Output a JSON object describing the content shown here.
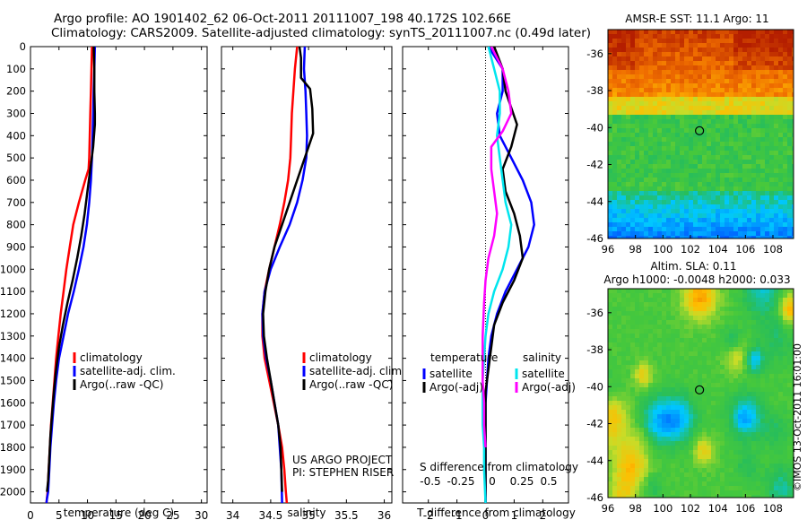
{
  "header": {
    "line1": "Argo profile: AO 1901402_62 06-Oct-2011 20111007_198 40.172S 102.66E",
    "line2": "Climatology: CARS2009. Satellite-adjusted climatology: synTS_20111007.nc (0.49d later)"
  },
  "colors": {
    "climatology": "#ff0000",
    "satellite": "#0000ff",
    "argo": "#000000",
    "sat_s": "#00e5ee",
    "argo_s": "#ff00ff"
  },
  "chart_data": [
    {
      "type": "line",
      "xlabel": "temperature (deg C)",
      "xlim": [
        0,
        31
      ],
      "ylim": [
        0,
        2050
      ],
      "y_reversed": true,
      "xticks": [
        0,
        5,
        10,
        15,
        20,
        25,
        30
      ],
      "yticks": [
        0,
        100,
        200,
        300,
        400,
        500,
        600,
        700,
        800,
        900,
        1000,
        1100,
        1200,
        1300,
        1400,
        1500,
        1600,
        1700,
        1800,
        1900,
        2000
      ],
      "legend": [
        "climatology",
        "satellite-adj. clim.",
        "Argo(..raw -QC)"
      ],
      "series": [
        {
          "name": "climatology",
          "color": "#ff0000",
          "x": [
            10.8,
            10.7,
            10.6,
            10.5,
            10.4,
            10.3,
            10.2,
            9.6,
            8.5,
            7.5,
            6.9,
            6.3,
            5.8,
            5.3,
            4.9,
            4.5,
            4.2,
            3.9,
            3.6,
            3.4,
            3.2,
            3.0,
            2.8,
            2.7,
            2.6,
            2.5
          ],
          "y": [
            0,
            100,
            200,
            300,
            400,
            500,
            550,
            600,
            700,
            800,
            900,
            1000,
            1100,
            1200,
            1300,
            1400,
            1500,
            1600,
            1700,
            1800,
            1900,
            2000,
            2050,
            2060,
            2070,
            2080
          ]
        },
        {
          "name": "satellite-adj. clim.",
          "color": "#0000ff",
          "x": [
            11.3,
            11.2,
            11.1,
            11.0,
            10.9,
            10.8,
            10.6,
            10.3,
            9.9,
            9.3,
            8.5,
            7.6,
            6.6,
            5.8,
            5.0,
            4.5,
            4.1,
            3.8,
            3.5,
            3.3,
            3.1,
            2.9,
            2.8
          ],
          "y": [
            0,
            100,
            200,
            300,
            400,
            500,
            600,
            700,
            800,
            900,
            1000,
            1100,
            1200,
            1300,
            1400,
            1500,
            1600,
            1700,
            1800,
            1900,
            2000,
            2030,
            2050
          ]
        },
        {
          "name": "Argo(..raw -QC)",
          "color": "#000000",
          "x": [
            11.1,
            11.2,
            11.2,
            11.3,
            11.3,
            11.0,
            10.5,
            10.0,
            9.5,
            8.9,
            8.2,
            7.4,
            6.5,
            5.7,
            5.0,
            4.5,
            4.1,
            3.8,
            3.5,
            3.3,
            3.1,
            2.9
          ],
          "y": [
            0,
            100,
            200,
            300,
            350,
            450,
            550,
            650,
            750,
            850,
            950,
            1050,
            1150,
            1250,
            1350,
            1450,
            1550,
            1650,
            1750,
            1850,
            1950,
            2000
          ]
        }
      ]
    },
    {
      "type": "line",
      "xlabel": "salinity",
      "xlim": [
        33.85,
        36.1
      ],
      "ylim": [
        0,
        2050
      ],
      "y_reversed": true,
      "xticks": [
        34,
        34.5,
        35,
        35.5,
        36
      ],
      "legend": [
        "climatology",
        "satellite-adj. clim.",
        "Argo(..raw -QC)"
      ],
      "annotation": [
        "US ARGO PROJECT",
        "PI: STEPHEN RISER"
      ],
      "series": [
        {
          "name": "climatology",
          "color": "#ff0000",
          "x": [
            34.85,
            34.82,
            34.8,
            34.78,
            34.77,
            34.76,
            34.73,
            34.68,
            34.62,
            34.55,
            34.48,
            34.42,
            34.39,
            34.39,
            34.42,
            34.48,
            34.54,
            34.6,
            34.65,
            34.68,
            34.7,
            34.72
          ],
          "y": [
            0,
            100,
            200,
            300,
            400,
            500,
            600,
            700,
            800,
            900,
            1000,
            1100,
            1200,
            1300,
            1400,
            1500,
            1600,
            1700,
            1800,
            1900,
            2000,
            2080
          ]
        },
        {
          "name": "satellite-adj. clim.",
          "color": "#0000ff",
          "x": [
            34.95,
            34.94,
            34.96,
            34.97,
            34.98,
            34.97,
            34.92,
            34.85,
            34.75,
            34.62,
            34.5,
            34.42,
            34.39,
            34.4,
            34.44,
            34.5,
            34.55,
            34.6,
            34.62,
            34.64,
            34.65
          ],
          "y": [
            0,
            100,
            200,
            300,
            400,
            500,
            600,
            700,
            800,
            900,
            1000,
            1100,
            1200,
            1300,
            1400,
            1500,
            1600,
            1700,
            1800,
            1900,
            2050
          ]
        },
        {
          "name": "Argo(..raw -QC)",
          "color": "#000000",
          "x": [
            34.88,
            34.9,
            34.9,
            35.02,
            35.05,
            35.06,
            34.95,
            34.85,
            34.75,
            34.65,
            34.55,
            34.48,
            34.43,
            34.4,
            34.41,
            34.45,
            34.5,
            34.55,
            34.6,
            34.63,
            34.65
          ],
          "y": [
            0,
            50,
            140,
            190,
            280,
            390,
            500,
            600,
            700,
            800,
            900,
            1000,
            1100,
            1200,
            1300,
            1400,
            1500,
            1600,
            1700,
            1800,
            2000
          ]
        }
      ]
    },
    {
      "type": "line",
      "title": "S difference from climatology",
      "xlabel": "T difference from climatology",
      "xlim": [
        -2.9,
        2.9
      ],
      "ylim": [
        0,
        2050
      ],
      "y_reversed": true,
      "xticks": [
        -2,
        -1,
        0,
        1,
        2
      ],
      "top_ticks": [
        "-0.5",
        "-0.25",
        "0",
        "0.25",
        "0.5"
      ],
      "legend_headers": [
        "temperature",
        "salinity"
      ],
      "legend": [
        "satellite",
        "Argo(-adj)",
        "satellite",
        "Argo(-adj)"
      ],
      "series": [
        {
          "name": "satellite",
          "color": "#0000ff",
          "x": [
            0.1,
            0.6,
            0.6,
            0.4,
            0.5,
            0.9,
            1.3,
            1.6,
            1.7,
            1.5,
            1.1,
            0.7,
            0.4,
            0.2,
            0.1,
            0.05,
            0.0,
            0.0,
            0.0,
            0.0,
            0.0
          ],
          "y": [
            0,
            100,
            200,
            300,
            400,
            500,
            600,
            700,
            800,
            900,
            1000,
            1100,
            1200,
            1300,
            1400,
            1500,
            1600,
            1700,
            1800,
            1900,
            2050
          ]
        },
        {
          "name": "Argo(-adj)",
          "color": "#000000",
          "x": [
            0.3,
            0.6,
            0.7,
            1.1,
            0.9,
            0.6,
            0.7,
            1.0,
            1.2,
            1.3,
            1.0,
            0.6,
            0.3,
            0.2,
            0.1,
            0.0,
            0.0,
            0.0,
            0.0,
            0.0,
            0.0
          ],
          "y": [
            0,
            100,
            200,
            350,
            450,
            550,
            650,
            750,
            850,
            950,
            1050,
            1150,
            1250,
            1350,
            1450,
            1550,
            1650,
            1750,
            1850,
            1950,
            2050
          ]
        },
        {
          "name": "satellite",
          "color": "#00e5ee",
          "x": [
            0.1,
            0.3,
            0.5,
            0.5,
            0.4,
            0.5,
            0.6,
            0.7,
            0.9,
            0.8,
            0.6,
            0.3,
            0.1,
            0.0,
            -0.05,
            -0.1,
            -0.1,
            -0.1,
            -0.05,
            -0.05,
            0.0
          ],
          "y": [
            0,
            100,
            200,
            300,
            400,
            500,
            600,
            700,
            800,
            900,
            1000,
            1100,
            1200,
            1300,
            1400,
            1500,
            1600,
            1700,
            1800,
            1900,
            2050
          ]
        },
        {
          "name": "Argo(-adj)",
          "color": "#ff00ff",
          "x": [
            0.2,
            0.6,
            0.8,
            0.9,
            0.6,
            0.2,
            0.2,
            0.3,
            0.4,
            0.3,
            0.1,
            0.0,
            -0.05,
            -0.1,
            -0.1,
            -0.1,
            -0.05,
            -0.05,
            0.0
          ],
          "y": [
            0,
            100,
            200,
            300,
            380,
            450,
            550,
            650,
            750,
            850,
            950,
            1050,
            1150,
            1300,
            1400,
            1500,
            1600,
            1700,
            1800
          ]
        }
      ]
    },
    {
      "type": "heatmap",
      "title": "AMSR-E SST: 11.1  Argo: 11",
      "x_ticks": [
        96,
        98,
        100,
        102,
        104,
        106,
        108
      ],
      "y_ticks": [
        -36,
        -38,
        -40,
        -42,
        -44,
        -46
      ],
      "xlim": [
        96,
        109.5
      ],
      "ylim": [
        -46,
        -34.7
      ],
      "marker": {
        "lon": 102.66,
        "lat": -40.172
      }
    },
    {
      "type": "heatmap",
      "title": "Altim. SLA: 0.11",
      "subtitle": "Argo h1000: -0.0048 h2000: 0.033",
      "x_ticks": [
        96,
        98,
        100,
        102,
        104,
        106,
        108
      ],
      "y_ticks": [
        -36,
        -38,
        -40,
        -42,
        -44,
        -46
      ],
      "xlim": [
        96,
        109.5
      ],
      "ylim": [
        -46,
        -34.7
      ],
      "marker": {
        "lon": 102.66,
        "lat": -40.172
      }
    }
  ],
  "watermark": "©IMOS 13-Oct-2011 16:01:00"
}
